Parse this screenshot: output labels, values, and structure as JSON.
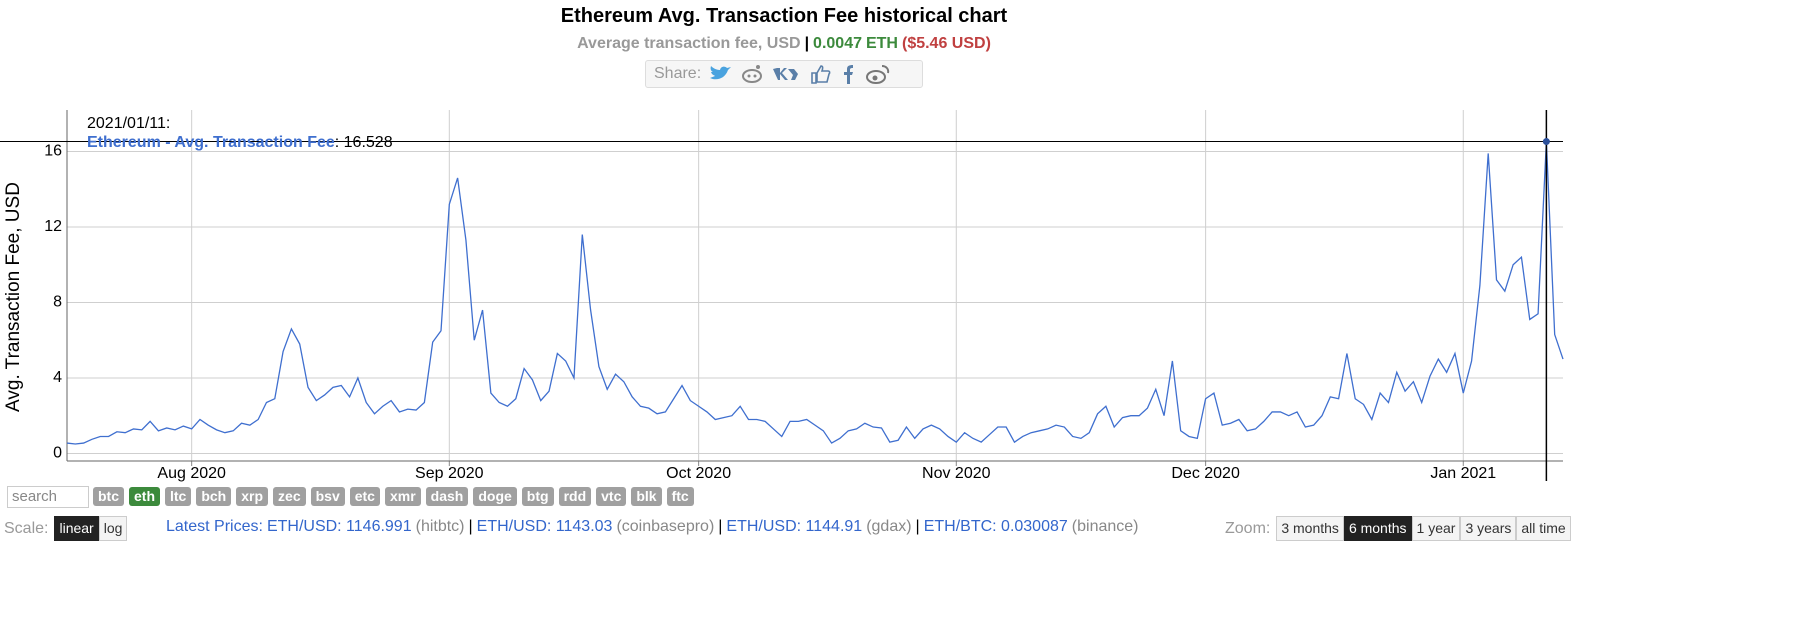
{
  "header": {
    "title": "Ethereum Avg. Transaction Fee historical chart",
    "subtitle": {
      "label": "Average transaction fee, USD",
      "separator": "|",
      "value_eth": "0.0047",
      "unit": "ETH",
      "value_usd": "($5.46 USD)"
    },
    "share_label": "Share:"
  },
  "chart_data": {
    "type": "line",
    "y_label": "Avg. Transaction Fee, USD",
    "x": [
      "2020/07/17",
      "2020/07/18",
      "2020/07/19",
      "2020/07/20",
      "2020/07/21",
      "2020/07/22",
      "2020/07/23",
      "2020/07/24",
      "2020/07/25",
      "2020/07/26",
      "2020/07/27",
      "2020/07/28",
      "2020/07/29",
      "2020/07/30",
      "2020/07/31",
      "2020/08/01",
      "2020/08/02",
      "2020/08/03",
      "2020/08/04",
      "2020/08/05",
      "2020/08/06",
      "2020/08/07",
      "2020/08/08",
      "2020/08/09",
      "2020/08/10",
      "2020/08/11",
      "2020/08/12",
      "2020/08/13",
      "2020/08/14",
      "2020/08/15",
      "2020/08/16",
      "2020/08/17",
      "2020/08/18",
      "2020/08/19",
      "2020/08/20",
      "2020/08/21",
      "2020/08/22",
      "2020/08/23",
      "2020/08/24",
      "2020/08/25",
      "2020/08/26",
      "2020/08/27",
      "2020/08/28",
      "2020/08/29",
      "2020/08/30",
      "2020/08/31",
      "2020/09/01",
      "2020/09/02",
      "2020/09/03",
      "2020/09/04",
      "2020/09/05",
      "2020/09/06",
      "2020/09/07",
      "2020/09/08",
      "2020/09/09",
      "2020/09/10",
      "2020/09/11",
      "2020/09/12",
      "2020/09/13",
      "2020/09/14",
      "2020/09/15",
      "2020/09/16",
      "2020/09/17",
      "2020/09/18",
      "2020/09/19",
      "2020/09/20",
      "2020/09/21",
      "2020/09/22",
      "2020/09/23",
      "2020/09/24",
      "2020/09/25",
      "2020/09/26",
      "2020/09/27",
      "2020/09/28",
      "2020/09/29",
      "2020/09/30",
      "2020/10/01",
      "2020/10/02",
      "2020/10/03",
      "2020/10/04",
      "2020/10/05",
      "2020/10/06",
      "2020/10/07",
      "2020/10/08",
      "2020/10/09",
      "2020/10/10",
      "2020/10/11",
      "2020/10/12",
      "2020/10/13",
      "2020/10/14",
      "2020/10/15",
      "2020/10/16",
      "2020/10/17",
      "2020/10/18",
      "2020/10/19",
      "2020/10/20",
      "2020/10/21",
      "2020/10/22",
      "2020/10/23",
      "2020/10/24",
      "2020/10/25",
      "2020/10/26",
      "2020/10/27",
      "2020/10/28",
      "2020/10/29",
      "2020/10/30",
      "2020/10/31",
      "2020/11/01",
      "2020/11/02",
      "2020/11/03",
      "2020/11/04",
      "2020/11/05",
      "2020/11/06",
      "2020/11/07",
      "2020/11/08",
      "2020/11/09",
      "2020/11/10",
      "2020/11/11",
      "2020/11/12",
      "2020/11/13",
      "2020/11/14",
      "2020/11/15",
      "2020/11/16",
      "2020/11/17",
      "2020/11/18",
      "2020/11/19",
      "2020/11/20",
      "2020/11/21",
      "2020/11/22",
      "2020/11/23",
      "2020/11/24",
      "2020/11/25",
      "2020/11/26",
      "2020/11/27",
      "2020/11/28",
      "2020/11/29",
      "2020/11/30",
      "2020/12/01",
      "2020/12/02",
      "2020/12/03",
      "2020/12/04",
      "2020/12/05",
      "2020/12/06",
      "2020/12/07",
      "2020/12/08",
      "2020/12/09",
      "2020/12/10",
      "2020/12/11",
      "2020/12/12",
      "2020/12/13",
      "2020/12/14",
      "2020/12/15",
      "2020/12/16",
      "2020/12/17",
      "2020/12/18",
      "2020/12/19",
      "2020/12/20",
      "2020/12/21",
      "2020/12/22",
      "2020/12/23",
      "2020/12/24",
      "2020/12/25",
      "2020/12/26",
      "2020/12/27",
      "2020/12/28",
      "2020/12/29",
      "2020/12/30",
      "2020/12/31",
      "2021/01/01",
      "2021/01/02",
      "2021/01/03",
      "2021/01/04",
      "2021/01/05",
      "2021/01/06",
      "2021/01/07",
      "2021/01/08",
      "2021/01/09",
      "2021/01/10",
      "2021/01/11",
      "2021/01/12",
      "2021/01/13"
    ],
    "series": [
      {
        "name": "Ethereum - Avg. Transaction Fee",
        "color": "#3f6fcf",
        "values": [
          0.55,
          0.5,
          0.55,
          0.75,
          0.9,
          0.9,
          1.15,
          1.1,
          1.3,
          1.25,
          1.7,
          1.2,
          1.35,
          1.25,
          1.45,
          1.3,
          1.8,
          1.5,
          1.25,
          1.1,
          1.2,
          1.6,
          1.5,
          1.8,
          2.7,
          2.9,
          5.4,
          6.6,
          5.8,
          3.5,
          2.8,
          3.1,
          3.5,
          3.6,
          3.0,
          4.0,
          2.7,
          2.1,
          2.5,
          2.8,
          2.2,
          2.35,
          2.3,
          2.7,
          5.9,
          6.5,
          13.2,
          14.6,
          11.3,
          6.0,
          7.6,
          3.2,
          2.7,
          2.5,
          2.9,
          4.5,
          3.9,
          2.8,
          3.3,
          5.3,
          4.9,
          4.0,
          11.6,
          7.6,
          4.6,
          3.4,
          4.2,
          3.8,
          3.0,
          2.5,
          2.4,
          2.1,
          2.2,
          2.9,
          3.6,
          2.8,
          2.5,
          2.2,
          1.8,
          1.9,
          2.0,
          2.5,
          1.8,
          1.8,
          1.7,
          1.3,
          0.9,
          1.7,
          1.7,
          1.8,
          1.5,
          1.2,
          0.55,
          0.8,
          1.2,
          1.3,
          1.6,
          1.4,
          1.35,
          0.6,
          0.7,
          1.4,
          0.8,
          1.3,
          1.5,
          1.3,
          0.9,
          0.6,
          1.1,
          0.8,
          0.6,
          1.0,
          1.4,
          1.4,
          0.6,
          0.9,
          1.1,
          1.2,
          1.3,
          1.5,
          1.4,
          0.9,
          0.8,
          1.1,
          2.1,
          2.5,
          1.4,
          1.9,
          2.0,
          2.0,
          2.4,
          3.4,
          2.0,
          4.9,
          1.2,
          0.9,
          0.8,
          2.9,
          3.2,
          1.5,
          1.6,
          1.8,
          1.2,
          1.3,
          1.7,
          2.2,
          2.2,
          2.0,
          2.2,
          1.4,
          1.5,
          2.0,
          3.0,
          2.9,
          5.3,
          2.9,
          2.6,
          1.8,
          3.2,
          2.7,
          4.3,
          3.3,
          3.8,
          2.7,
          4.1,
          5.0,
          4.3,
          5.3,
          3.2,
          4.9,
          8.9,
          15.9,
          9.2,
          8.6,
          10.0,
          10.4,
          7.1,
          7.4,
          16.528,
          6.3,
          5.0
        ]
      }
    ],
    "xlim": [
      "2020/07/17",
      "2021/01/13"
    ],
    "xticks": [
      {
        "value": "2020/08/01",
        "label": "Aug 2020"
      },
      {
        "value": "2020/09/01",
        "label": "Sep 2020"
      },
      {
        "value": "2020/10/01",
        "label": "Oct 2020"
      },
      {
        "value": "2020/11/01",
        "label": "Nov 2020"
      },
      {
        "value": "2020/12/01",
        "label": "Dec 2020"
      },
      {
        "value": "2021/01/01",
        "label": "Jan 2021"
      }
    ],
    "ylim": [
      -0.4,
      18.2
    ],
    "yticks": [
      0,
      4,
      8,
      12,
      16
    ],
    "grid": true,
    "tooltip": {
      "date": "2021/01/11:",
      "separator": ": "
    }
  },
  "controls": {
    "search_placeholder": "search",
    "coins": [
      "btc",
      "eth",
      "ltc",
      "bch",
      "xrp",
      "zec",
      "bsv",
      "etc",
      "xmr",
      "dash",
      "doge",
      "btg",
      "rdd",
      "vtc",
      "blk",
      "ftc"
    ],
    "active_coin": "eth",
    "scale_label": "Scale:",
    "scales": [
      "linear",
      "log"
    ],
    "active_scale": "linear",
    "prices_label": "Latest Prices:",
    "prices": [
      {
        "pair": "ETH/USD: 1146.991",
        "source": "(hitbtc)"
      },
      {
        "pair": "ETH/USD: 1143.03",
        "source": "(coinbasepro)"
      },
      {
        "pair": "ETH/USD: 1144.91",
        "source": "(gdax)"
      },
      {
        "pair": "ETH/BTC: 0.030087",
        "source": "(binance)"
      }
    ],
    "price_separator": "|",
    "zoom_label": "Zoom:",
    "zooms": [
      "3 months",
      "6 months",
      "1 year",
      "3 years",
      "all time"
    ],
    "active_zoom": "6 months"
  }
}
